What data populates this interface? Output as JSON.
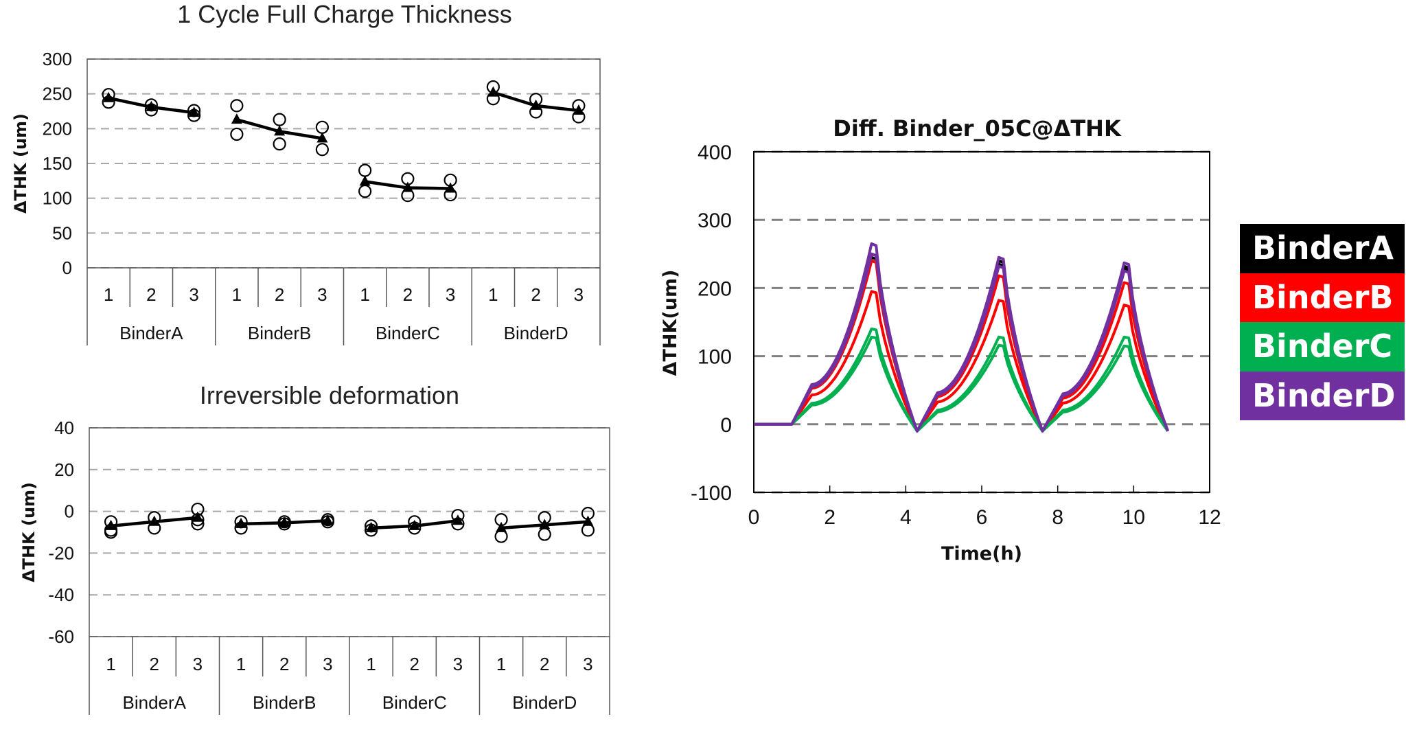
{
  "chart_data": [
    {
      "type": "scatter",
      "title": "1 Cycle Full Charge Thickness",
      "xlabel": "",
      "ylabel": "ΔTHK (um)",
      "ylim": [
        0,
        300
      ],
      "yticks": [
        0,
        50,
        100,
        150,
        200,
        250,
        300
      ],
      "grid": true,
      "groups": [
        "BinderA",
        "BinderB",
        "BinderC",
        "BinderD"
      ],
      "subcategories": [
        "1",
        "2",
        "3"
      ],
      "series": [
        {
          "name": "BinderA",
          "mean": [
            244,
            231,
            223
          ],
          "samples": [
            [
              249,
              238
            ],
            [
              234,
              227
            ],
            [
              226,
              219
            ]
          ]
        },
        {
          "name": "BinderB",
          "mean": [
            213,
            196,
            186
          ],
          "samples": [
            [
              233,
              192
            ],
            [
              213,
              178
            ],
            [
              202,
              170
            ]
          ]
        },
        {
          "name": "BinderC",
          "mean": [
            124,
            115,
            114
          ],
          "samples": [
            [
              140,
              110
            ],
            [
              128,
              104
            ],
            [
              126,
              105
            ]
          ]
        },
        {
          "name": "BinderD",
          "mean": [
            252,
            233,
            226
          ],
          "samples": [
            [
              260,
              243
            ],
            [
              242,
              224
            ],
            [
              233,
              217
            ]
          ]
        }
      ]
    },
    {
      "type": "scatter",
      "title": "Irreversible deformation",
      "xlabel": "",
      "ylabel": "ΔTHK (um)",
      "ylim": [
        -60,
        40
      ],
      "yticks": [
        -60,
        -40,
        -20,
        0,
        20,
        40
      ],
      "grid": true,
      "groups": [
        "BinderA",
        "BinderB",
        "BinderC",
        "BinderD"
      ],
      "subcategories": [
        "1",
        "2",
        "3"
      ],
      "series": [
        {
          "name": "BinderA",
          "mean": [
            -7,
            -5,
            -3
          ],
          "samples": [
            [
              -5,
              -9,
              -10
            ],
            [
              -3,
              -8
            ],
            [
              1,
              -4,
              -6
            ]
          ]
        },
        {
          "name": "BinderB",
          "mean": [
            -6,
            -5.5,
            -4.5
          ],
          "samples": [
            [
              -5,
              -8
            ],
            [
              -5,
              -6
            ],
            [
              -4,
              -5
            ]
          ]
        },
        {
          "name": "BinderC",
          "mean": [
            -8,
            -7,
            -4.5
          ],
          "samples": [
            [
              -7,
              -9
            ],
            [
              -5,
              -8
            ],
            [
              -2,
              -6
            ]
          ]
        },
        {
          "name": "BinderD",
          "mean": [
            -8,
            -6.5,
            -5
          ],
          "samples": [
            [
              -4,
              -12
            ],
            [
              -3,
              -11
            ],
            [
              -1,
              -9
            ]
          ]
        }
      ]
    },
    {
      "type": "line",
      "title": "Diff. Binder_05C@ΔTHK",
      "xlabel": "Time(h)",
      "ylabel": "ΔTHK(um)",
      "xlim": [
        0,
        12
      ],
      "ylim": [
        -100,
        400
      ],
      "xticks": [
        0,
        2,
        4,
        6,
        8,
        10,
        12
      ],
      "yticks": [
        -100,
        0,
        100,
        200,
        300,
        400
      ],
      "grid": true,
      "legend": "right",
      "cycle_times": {
        "start": 1.0,
        "peaks": [
          3.1,
          6.45,
          9.75
        ],
        "troughs": [
          4.3,
          7.6,
          10.9
        ]
      },
      "series": [
        {
          "name": "BinderA",
          "color": "#000000",
          "samples": [
            {
              "peaks": [
                250,
                240,
                232
              ]
            },
            {
              "peaks": [
                245,
                235,
                228
              ]
            }
          ]
        },
        {
          "name": "BinderB",
          "color": "#ff0000",
          "samples": [
            {
              "peaks": [
                240,
                218,
                208
              ]
            },
            {
              "peaks": [
                195,
                182,
                175
              ]
            }
          ]
        },
        {
          "name": "BinderC",
          "color": "#00b050",
          "samples": [
            {
              "peaks": [
                140,
                128,
                128
              ]
            },
            {
              "peaks": [
                128,
                116,
                115
              ]
            }
          ]
        },
        {
          "name": "BinderD",
          "color": "#7030a0",
          "samples": [
            {
              "peaks": [
                265,
                245,
                237
              ]
            },
            {
              "peaks": [
                250,
                232,
                225
              ]
            }
          ]
        }
      ]
    }
  ],
  "legend": [
    {
      "label": "BinderA",
      "color": "#000000"
    },
    {
      "label": "BinderB",
      "color": "#ff0000"
    },
    {
      "label": "BinderC",
      "color": "#00b050"
    },
    {
      "label": "BinderD",
      "color": "#7030a0"
    }
  ]
}
